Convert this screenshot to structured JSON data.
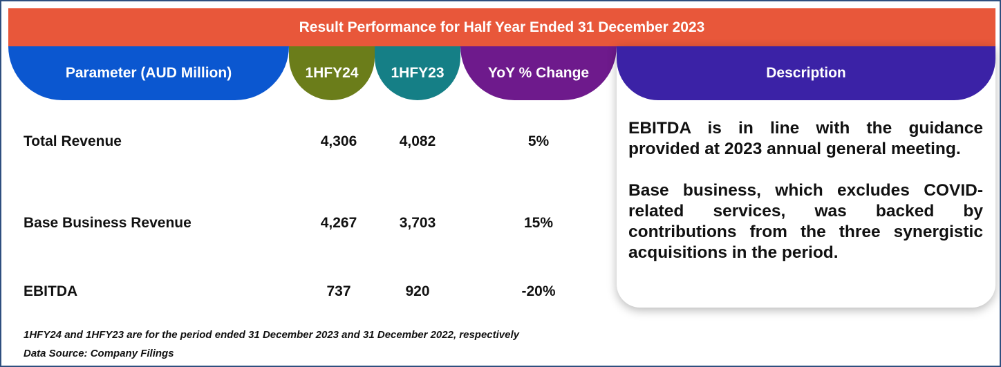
{
  "title": "Result Performance for Half Year Ended 31 December 2023",
  "headers": {
    "parameter": "Parameter (AUD Million)",
    "fy24": "1HFY24",
    "fy23": "1HFY23",
    "yoy": "YoY % Change",
    "description": "Description"
  },
  "rows": [
    {
      "label": "Total Revenue",
      "fy24": "4,306",
      "fy23": "4,082",
      "yoy": "5%"
    },
    {
      "label": "Base Business Revenue",
      "fy24": "4,267",
      "fy23": "3,703",
      "yoy": "15%"
    },
    {
      "label": "EBITDA",
      "fy24": "737",
      "fy23": "920",
      "yoy": "-20%"
    }
  ],
  "description": {
    "paragraph1": "EBITDA is in line with the guidance provided at 2023 annual general meeting.",
    "paragraph2": "Base business, which excludes COVID-related services, was backed by contributions from the three synergistic acquisitions in the period."
  },
  "footnote": "1HFY24 and 1HFY23 are for the period ended 31 December  2023 and 31 December 2022, respectively",
  "source": "Data Source: Company Filings",
  "colors": {
    "banner": "#e8573a",
    "parameter": "#0b57d0",
    "fy24": "#6b7d1a",
    "fy23": "#157f86",
    "yoy": "#6e1a8c",
    "description": "#3b22a6"
  }
}
